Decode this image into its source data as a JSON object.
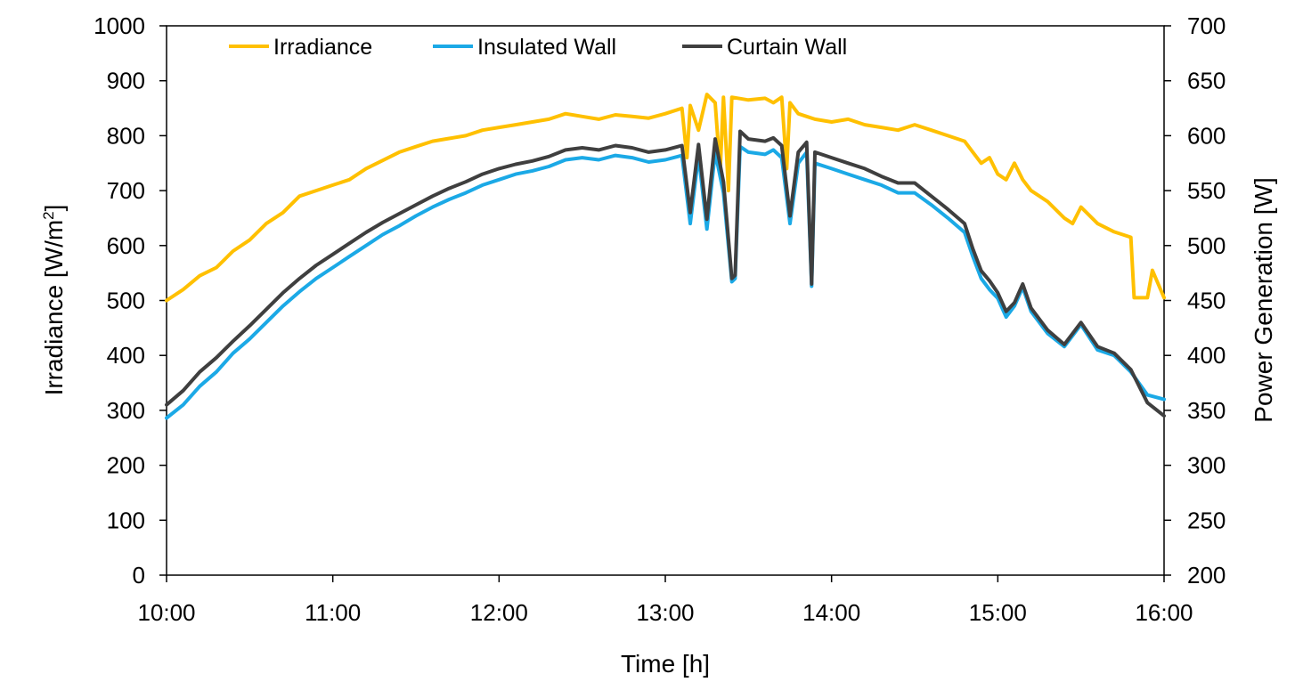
{
  "chart_data": {
    "type": "line",
    "title": "",
    "xlabel": "Time [h]",
    "ylabel_left": "Irradiance [W/m",
    "ylabel_left_sup": "2",
    "ylabel_left_suffix": "]",
    "ylabel_right": "Power Generation [W]",
    "x_ticks": [
      "10:00",
      "11:00",
      "12:00",
      "13:00",
      "14:00",
      "15:00",
      "16:00"
    ],
    "xlim_hours": [
      10,
      16
    ],
    "ylim_left": [
      0,
      1000
    ],
    "ylim_right": [
      200,
      700
    ],
    "y_ticks_left": [
      "0",
      "100",
      "200",
      "300",
      "400",
      "500",
      "600",
      "700",
      "800",
      "900",
      "1000"
    ],
    "y_ticks_right": [
      "200",
      "250",
      "300",
      "350",
      "400",
      "450",
      "500",
      "550",
      "600",
      "650",
      "700"
    ],
    "grid": false,
    "legend_position": "top-left",
    "series": [
      {
        "name": "Irradiance",
        "axis": "left",
        "color": "#FFC000",
        "x": [
          10.0,
          10.1,
          10.2,
          10.3,
          10.4,
          10.5,
          10.6,
          10.7,
          10.8,
          10.9,
          11.0,
          11.1,
          11.2,
          11.3,
          11.4,
          11.5,
          11.6,
          11.7,
          11.8,
          11.9,
          12.0,
          12.1,
          12.2,
          12.3,
          12.4,
          12.5,
          12.6,
          12.7,
          12.8,
          12.9,
          13.0,
          13.1,
          13.13,
          13.15,
          13.2,
          13.25,
          13.3,
          13.33,
          13.35,
          13.38,
          13.4,
          13.5,
          13.6,
          13.65,
          13.7,
          13.73,
          13.75,
          13.8,
          13.85,
          13.9,
          14.0,
          14.1,
          14.2,
          14.3,
          14.4,
          14.5,
          14.6,
          14.7,
          14.8,
          14.85,
          14.9,
          14.95,
          15.0,
          15.05,
          15.1,
          15.15,
          15.2,
          15.3,
          15.4,
          15.45,
          15.5,
          15.6,
          15.7,
          15.8,
          15.82,
          15.9,
          15.93,
          16.0
        ],
        "values": [
          500,
          520,
          545,
          560,
          590,
          610,
          640,
          660,
          690,
          700,
          710,
          720,
          740,
          755,
          770,
          780,
          790,
          795,
          800,
          810,
          815,
          820,
          825,
          830,
          840,
          835,
          830,
          838,
          835,
          832,
          840,
          850,
          760,
          855,
          810,
          875,
          860,
          735,
          870,
          700,
          870,
          865,
          868,
          860,
          870,
          740,
          860,
          840,
          835,
          830,
          825,
          830,
          820,
          815,
          810,
          820,
          810,
          800,
          790,
          770,
          750,
          760,
          730,
          720,
          750,
          720,
          700,
          680,
          650,
          640,
          670,
          640,
          625,
          615,
          505,
          505,
          555,
          505
        ]
      },
      {
        "name": "Insulated Wall",
        "axis": "right",
        "color": "#1BA9E6",
        "x": [
          10.0,
          10.1,
          10.2,
          10.3,
          10.4,
          10.5,
          10.6,
          10.7,
          10.8,
          10.9,
          11.0,
          11.1,
          11.2,
          11.3,
          11.4,
          11.5,
          11.6,
          11.7,
          11.8,
          11.9,
          12.0,
          12.1,
          12.2,
          12.3,
          12.4,
          12.5,
          12.6,
          12.7,
          12.8,
          12.9,
          13.0,
          13.1,
          13.15,
          13.2,
          13.25,
          13.3,
          13.35,
          13.4,
          13.42,
          13.45,
          13.5,
          13.6,
          13.65,
          13.7,
          13.75,
          13.8,
          13.85,
          13.88,
          13.9,
          14.0,
          14.1,
          14.2,
          14.3,
          14.4,
          14.5,
          14.6,
          14.7,
          14.8,
          14.85,
          14.9,
          14.95,
          15.0,
          15.05,
          15.1,
          15.15,
          15.2,
          15.3,
          15.4,
          15.5,
          15.6,
          15.7,
          15.8,
          15.9,
          16.0
        ],
        "values": [
          343,
          355,
          372,
          385,
          402,
          415,
          430,
          445,
          458,
          470,
          480,
          490,
          500,
          510,
          518,
          527,
          535,
          542,
          548,
          555,
          560,
          565,
          568,
          572,
          578,
          580,
          578,
          582,
          580,
          576,
          578,
          582,
          520,
          582,
          515,
          585,
          548,
          467,
          470,
          590,
          585,
          583,
          587,
          580,
          520,
          575,
          585,
          463,
          575,
          570,
          565,
          560,
          555,
          548,
          548,
          537,
          525,
          512,
          490,
          470,
          460,
          452,
          435,
          445,
          462,
          440,
          420,
          408,
          428,
          405,
          400,
          385,
          364,
          360
        ]
      },
      {
        "name": "Curtain Wall",
        "axis": "right",
        "color": "#3F3F3F",
        "x": [
          10.0,
          10.1,
          10.2,
          10.3,
          10.4,
          10.5,
          10.6,
          10.7,
          10.8,
          10.9,
          11.0,
          11.1,
          11.2,
          11.3,
          11.4,
          11.5,
          11.6,
          11.7,
          11.8,
          11.9,
          12.0,
          12.1,
          12.2,
          12.3,
          12.4,
          12.5,
          12.6,
          12.7,
          12.8,
          12.9,
          13.0,
          13.1,
          13.15,
          13.2,
          13.25,
          13.3,
          13.35,
          13.4,
          13.42,
          13.45,
          13.5,
          13.6,
          13.65,
          13.7,
          13.75,
          13.8,
          13.85,
          13.88,
          13.9,
          14.0,
          14.1,
          14.2,
          14.3,
          14.4,
          14.5,
          14.6,
          14.7,
          14.8,
          14.85,
          14.9,
          14.95,
          15.0,
          15.05,
          15.1,
          15.15,
          15.2,
          15.3,
          15.4,
          15.5,
          15.6,
          15.7,
          15.8,
          15.9,
          16.0
        ],
        "values": [
          355,
          368,
          385,
          398,
          413,
          427,
          442,
          457,
          470,
          482,
          492,
          502,
          512,
          521,
          529,
          537,
          545,
          552,
          558,
          565,
          570,
          574,
          577,
          581,
          587,
          589,
          587,
          591,
          589,
          585,
          587,
          591,
          530,
          592,
          524,
          597,
          558,
          470,
          473,
          604,
          597,
          595,
          598,
          591,
          527,
          585,
          594,
          465,
          585,
          580,
          575,
          570,
          563,
          557,
          557,
          545,
          533,
          520,
          497,
          477,
          468,
          457,
          440,
          448,
          465,
          443,
          423,
          410,
          430,
          408,
          402,
          387,
          357,
          345
        ]
      }
    ]
  }
}
